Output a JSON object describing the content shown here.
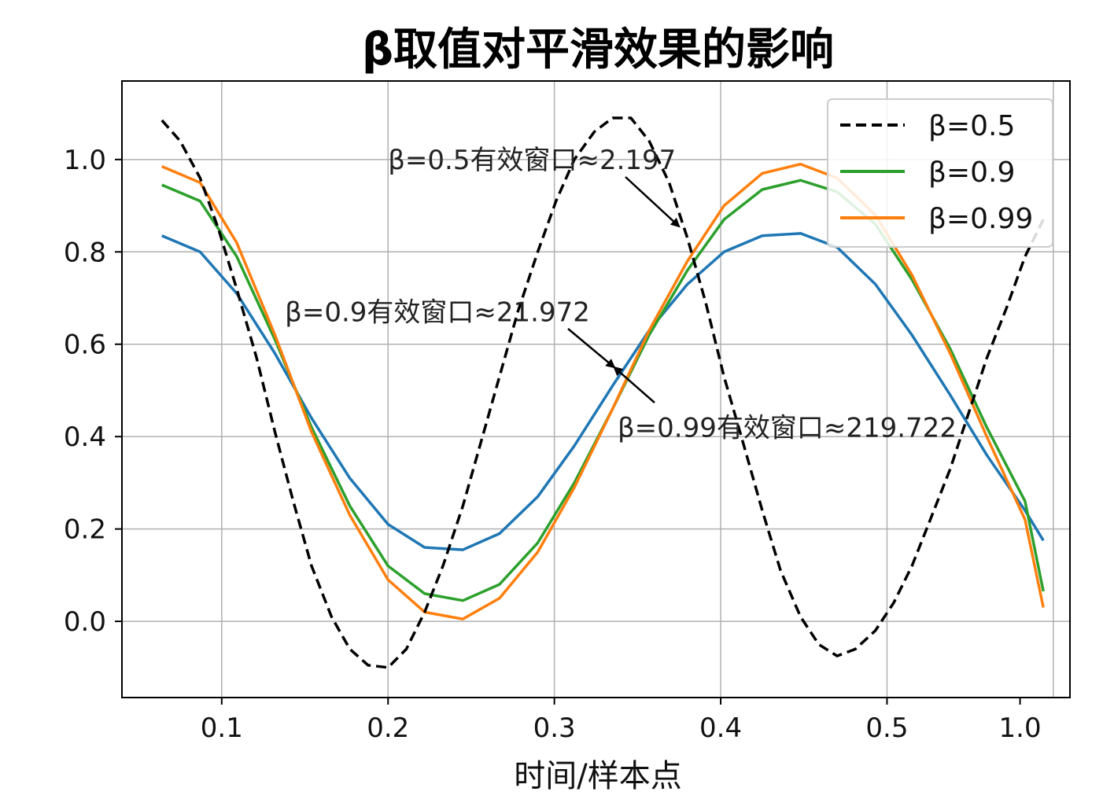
{
  "chart_data": {
    "type": "line",
    "title": "β取值对平滑效果的影响",
    "xlabel": "时间/样本点",
    "ylabel": "",
    "xlim": [
      0.04,
      1.0
    ],
    "ylim": [
      -0.165,
      1.17
    ],
    "x_ticks": [
      0.1,
      0.2,
      0.3,
      0.4,
      0.5,
      1.0
    ],
    "x_tick_labels": [
      "0.1",
      "0.2",
      "0.3",
      "0.4",
      "0.5",
      "1.0"
    ],
    "x_tick_label_positions": [
      0.1,
      0.2,
      0.3,
      0.4,
      0.5,
      0.58
    ],
    "x_grid": [
      0.1,
      0.2,
      0.3,
      0.4,
      0.5,
      0.6
    ],
    "y_ticks": [
      0.0,
      0.2,
      0.4,
      0.6,
      0.8,
      1.0
    ],
    "y_tick_labels": [
      "0.0",
      "0.2",
      "0.4",
      "0.6",
      "0.8",
      "1.0"
    ],
    "grid": true,
    "legend_position": "top-right",
    "series": [
      {
        "name": "β=0.5",
        "color": "#000000",
        "dash": true,
        "in_legend": true,
        "x": [
          0.064,
          0.075,
          0.087,
          0.098,
          0.109,
          0.121,
          0.132,
          0.143,
          0.154,
          0.166,
          0.177,
          0.188,
          0.2,
          0.211,
          0.222,
          0.233,
          0.245,
          0.256,
          0.267,
          0.278,
          0.29,
          0.301,
          0.312,
          0.324,
          0.335,
          0.346,
          0.357,
          0.369,
          0.38,
          0.391,
          0.402,
          0.414,
          0.425,
          0.436,
          0.448,
          0.459,
          0.47,
          0.481,
          0.493,
          0.504,
          0.515,
          0.526,
          0.538,
          0.549,
          0.56,
          0.572,
          0.583,
          0.594
        ],
        "y": [
          1.085,
          1.04,
          0.96,
          0.85,
          0.72,
          0.57,
          0.41,
          0.26,
          0.12,
          0.01,
          -0.06,
          -0.095,
          -0.1,
          -0.06,
          0.02,
          0.12,
          0.25,
          0.39,
          0.53,
          0.67,
          0.8,
          0.91,
          1.0,
          1.06,
          1.09,
          1.09,
          1.04,
          0.95,
          0.83,
          0.69,
          0.53,
          0.38,
          0.24,
          0.11,
          0.01,
          -0.05,
          -0.075,
          -0.06,
          -0.02,
          0.04,
          0.12,
          0.22,
          0.33,
          0.45,
          0.57,
          0.68,
          0.79,
          0.87
        ]
      },
      {
        "name": "β=0.9",
        "color": "#2ca02c",
        "dash": false,
        "in_legend": true,
        "x": [
          0.064,
          0.087,
          0.109,
          0.132,
          0.154,
          0.177,
          0.2,
          0.222,
          0.245,
          0.267,
          0.29,
          0.312,
          0.335,
          0.357,
          0.38,
          0.402,
          0.425,
          0.448,
          0.47,
          0.493,
          0.515,
          0.538,
          0.56,
          0.583,
          0.594
        ],
        "y": [
          0.945,
          0.91,
          0.79,
          0.61,
          0.42,
          0.25,
          0.12,
          0.06,
          0.045,
          0.08,
          0.17,
          0.3,
          0.46,
          0.62,
          0.76,
          0.87,
          0.935,
          0.955,
          0.93,
          0.86,
          0.74,
          0.59,
          0.42,
          0.26,
          0.065
        ]
      },
      {
        "name": "β=0.99",
        "color": "#ff7f0e",
        "dash": false,
        "in_legend": true,
        "x": [
          0.064,
          0.087,
          0.109,
          0.132,
          0.154,
          0.177,
          0.2,
          0.222,
          0.245,
          0.267,
          0.29,
          0.312,
          0.335,
          0.357,
          0.38,
          0.402,
          0.425,
          0.448,
          0.47,
          0.493,
          0.515,
          0.538,
          0.56,
          0.583,
          0.594
        ],
        "y": [
          0.985,
          0.95,
          0.82,
          0.62,
          0.41,
          0.23,
          0.09,
          0.02,
          0.005,
          0.05,
          0.15,
          0.29,
          0.46,
          0.63,
          0.78,
          0.9,
          0.97,
          0.99,
          0.96,
          0.88,
          0.75,
          0.58,
          0.4,
          0.22,
          0.03
        ]
      },
      {
        "name": "",
        "color": "#1f77b4",
        "dash": false,
        "in_legend": false,
        "x": [
          0.064,
          0.087,
          0.109,
          0.132,
          0.154,
          0.177,
          0.2,
          0.222,
          0.245,
          0.267,
          0.29,
          0.312,
          0.335,
          0.357,
          0.38,
          0.402,
          0.425,
          0.448,
          0.47,
          0.493,
          0.515,
          0.538,
          0.56,
          0.583,
          0.594
        ],
        "y": [
          0.835,
          0.8,
          0.71,
          0.58,
          0.44,
          0.31,
          0.21,
          0.16,
          0.155,
          0.19,
          0.27,
          0.38,
          0.51,
          0.63,
          0.73,
          0.8,
          0.835,
          0.84,
          0.81,
          0.73,
          0.62,
          0.49,
          0.36,
          0.24,
          0.175
        ]
      }
    ],
    "annotations": [
      {
        "text": "β=0.5有效窗口≈2.197",
        "text_x": 0.2,
        "text_y": 1.0,
        "arrow_to_x": 0.375,
        "arrow_to_y": 0.855
      },
      {
        "text": "β=0.9有效窗口≈21.972",
        "text_x": 0.138,
        "text_y": 0.67,
        "arrow_to_x": 0.336,
        "arrow_to_y": 0.55
      },
      {
        "text": "β=0.99有效窗口≈219.722",
        "text_x": 0.338,
        "text_y": 0.42,
        "arrow_to_x": 0.336,
        "arrow_to_y": 0.55
      }
    ]
  }
}
